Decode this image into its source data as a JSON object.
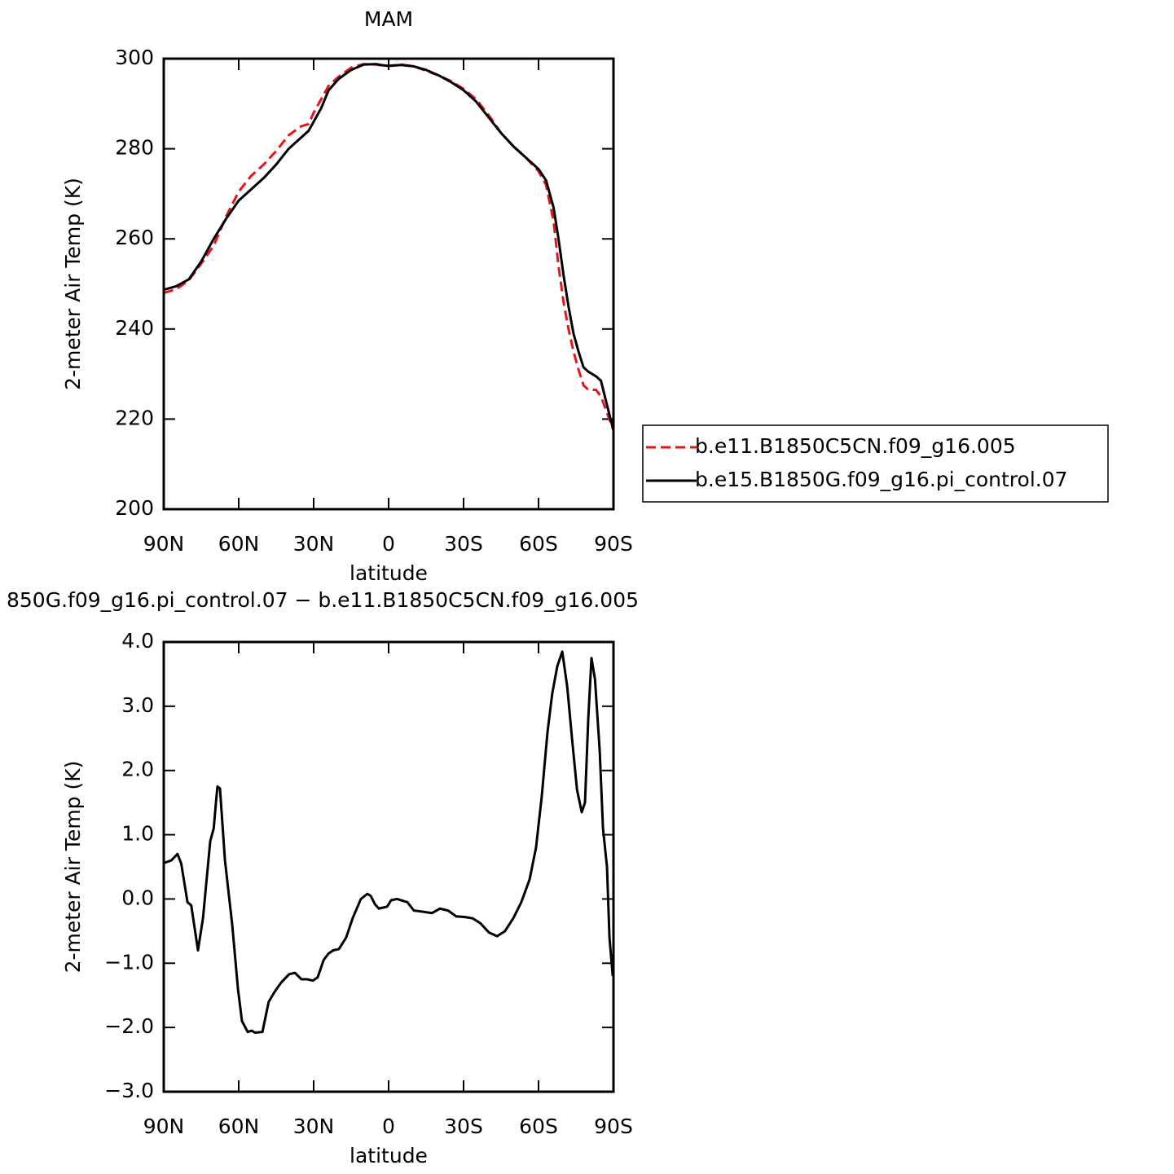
{
  "chart_data": [
    {
      "type": "line",
      "title": "MAM",
      "xlabel": "latitude",
      "ylabel": "2-meter Air Temp (K)",
      "x": [
        90,
        85,
        80,
        75,
        70,
        65,
        60,
        55,
        50,
        45,
        40,
        35,
        32,
        30,
        27,
        24,
        20,
        15,
        10,
        5,
        2,
        0,
        -5,
        -10,
        -15,
        -20,
        -25,
        -30,
        -35,
        -40,
        -45,
        -50,
        -55,
        -60,
        -63,
        -66,
        -68,
        -70,
        -72,
        -74,
        -76,
        -78,
        -80,
        -83,
        -85,
        -87,
        -90
      ],
      "series": [
        {
          "name": "b.e11.B1850C5CN.f09_g16.005",
          "color": "#e8141b",
          "dash": true,
          "values": [
            248,
            248.8,
            250.8,
            254.5,
            258.5,
            265,
            270.5,
            274,
            276.5,
            279.5,
            283,
            285,
            285.5,
            288,
            291,
            294,
            296,
            298,
            298.8,
            298.7,
            298.4,
            298.4,
            298.7,
            298.3,
            297.3,
            296.3,
            295,
            293.3,
            291,
            287.5,
            283.5,
            280.5,
            278,
            275,
            272,
            264,
            254,
            246,
            240,
            235,
            231,
            227.5,
            226.5,
            226.5,
            225,
            222,
            217.5
          ]
        },
        {
          "name": "b.e15.B1850G.f09_g16.pi_control.07",
          "color": "#000000",
          "dash": false,
          "values": [
            248.7,
            249.5,
            251,
            255,
            260,
            264.5,
            268.5,
            271,
            273.5,
            276.5,
            280,
            282.5,
            284,
            286,
            289,
            293,
            295.5,
            297.5,
            298.7,
            298.8,
            298.5,
            298.4,
            298.6,
            298.3,
            297.5,
            296.3,
            294.8,
            293,
            290.5,
            287,
            283.5,
            280.5,
            278,
            275.5,
            273,
            267,
            260,
            252,
            245,
            239,
            235,
            231.5,
            230.5,
            229.5,
            228.5,
            224,
            217.5
          ]
        }
      ],
      "xlim": [
        90,
        -90
      ],
      "xticks": [
        {
          "value": 90,
          "label": "90N"
        },
        {
          "value": 60,
          "label": "60N"
        },
        {
          "value": 30,
          "label": "30N"
        },
        0,
        {
          "value": -30,
          "label": "30S"
        },
        {
          "value": -60,
          "label": "60S"
        },
        {
          "value": -90,
          "label": "90S"
        }
      ],
      "ylim": [
        200,
        300
      ],
      "yticks": [
        200,
        220,
        240,
        260,
        280,
        300
      ],
      "legend": "outside-right"
    },
    {
      "type": "line",
      "title": "850G.f09_g16.pi_control.07 − b.e11.B1850C5CN.f09_g16.005",
      "xlabel": "latitude",
      "ylabel": "2-meter Air Temp (K)",
      "x": [
        90,
        87,
        84.5,
        83,
        80.5,
        79,
        76.3,
        74.3,
        71.4,
        70,
        69,
        68.5,
        67.5,
        65.5,
        62.6,
        60.3,
        58.7,
        56.4,
        54.8,
        53.5,
        50.5,
        48,
        45.7,
        43,
        39.8,
        37.5,
        34.9,
        32.6,
        30.3,
        28.4,
        26,
        24.1,
        22.2,
        19.9,
        17,
        14.4,
        11.1,
        8.5,
        7.2,
        5.5,
        3.9,
        0.6,
        -1,
        -3.3,
        -7.5,
        -10.1,
        -14,
        -17.3,
        -20.5,
        -23.8,
        -27,
        -30.3,
        -33.6,
        -36.8,
        -40.1,
        -43.4,
        -46.6,
        -49.9,
        -53.1,
        -56.4,
        -59,
        -61.3,
        -63.6,
        -65.5,
        -67.5,
        -69.5,
        -71.5,
        -73.4,
        -75.4,
        -77.3,
        -78.6,
        -79.9,
        -81.2,
        -82.6,
        -84.5,
        -85.8,
        -87.4,
        -88.4,
        -89.7
      ],
      "series": [
        {
          "name": null,
          "color": "#000000",
          "dash": false,
          "values": [
            0.56,
            0.6,
            0.7,
            0.55,
            -0.05,
            -0.1,
            -0.8,
            -0.3,
            0.9,
            1.1,
            1.55,
            1.75,
            1.72,
            0.6,
            -0.4,
            -1.4,
            -1.9,
            -2.07,
            -2.05,
            -2.08,
            -2.07,
            -1.6,
            -1.45,
            -1.3,
            -1.17,
            -1.15,
            -1.25,
            -1.25,
            -1.27,
            -1.22,
            -0.95,
            -0.85,
            -0.8,
            -0.78,
            -0.6,
            -0.3,
            0,
            0.08,
            0.05,
            -0.08,
            -0.15,
            -0.12,
            -0.02,
            0,
            -0.05,
            -0.18,
            -0.2,
            -0.22,
            -0.15,
            -0.18,
            -0.27,
            -0.28,
            -0.3,
            -0.38,
            -0.52,
            -0.58,
            -0.5,
            -0.3,
            -0.05,
            0.3,
            0.8,
            1.6,
            2.6,
            3.2,
            3.62,
            3.85,
            3.3,
            2.5,
            1.7,
            1.35,
            1.5,
            2.8,
            3.75,
            3.42,
            2.3,
            1.1,
            0.5,
            -0.6,
            -1.2
          ]
        }
      ],
      "xlim": [
        90,
        -90
      ],
      "xticks": [
        {
          "value": 90,
          "label": "90N"
        },
        {
          "value": 60,
          "label": "60N"
        },
        {
          "value": 30,
          "label": "30N"
        },
        0,
        {
          "value": -30,
          "label": "30S"
        },
        {
          "value": -60,
          "label": "60S"
        },
        {
          "value": -90,
          "label": "90S"
        }
      ],
      "ylim": [
        -3,
        4
      ],
      "yticks": [
        {
          "value": -3,
          "label": "−3.0"
        },
        {
          "value": -2,
          "label": "−2.0"
        },
        {
          "value": -1,
          "label": "−1.0"
        },
        {
          "value": 0,
          "label": "0.0"
        },
        {
          "value": 1,
          "label": "1.0"
        },
        {
          "value": 2,
          "label": "2.0"
        },
        {
          "value": 3,
          "label": "3.0"
        },
        {
          "value": 4,
          "label": "4.0"
        }
      ]
    }
  ]
}
